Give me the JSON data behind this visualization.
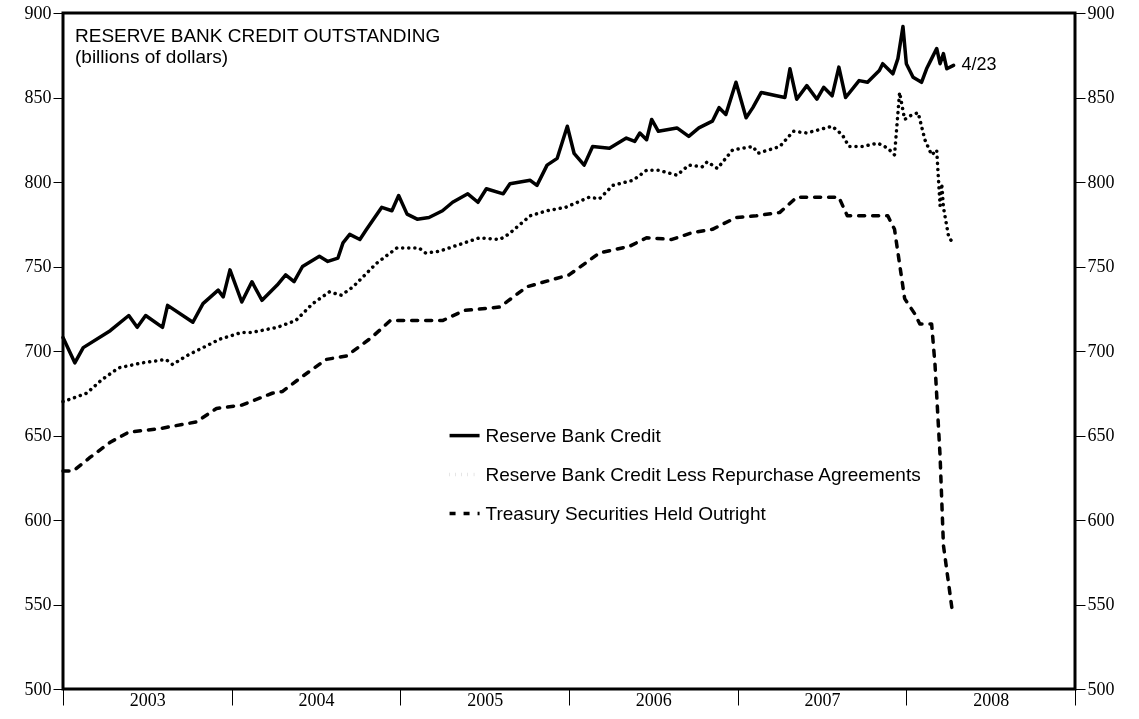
{
  "chart_data": {
    "type": "line",
    "title": "RESERVE BANK CREDIT OUTSTANDING",
    "subtitle": "(billions of dollars)",
    "xlim": [
      2003,
      2009
    ],
    "xticks": [
      {
        "value": 2003,
        "label": null
      },
      {
        "value": 2003.5,
        "label": "2003"
      },
      {
        "value": 2004,
        "label": null
      },
      {
        "value": 2004.5,
        "label": "2004"
      },
      {
        "value": 2005,
        "label": null
      },
      {
        "value": 2005.5,
        "label": "2005"
      },
      {
        "value": 2006,
        "label": null
      },
      {
        "value": 2006.5,
        "label": "2006"
      },
      {
        "value": 2007,
        "label": null
      },
      {
        "value": 2007.5,
        "label": "2007"
      },
      {
        "value": 2008,
        "label": null
      },
      {
        "value": 2008.5,
        "label": "2008"
      },
      {
        "value": 2009,
        "label": null
      }
    ],
    "ylim": [
      500,
      900
    ],
    "yticks": [
      500,
      550,
      600,
      650,
      700,
      750,
      800,
      850,
      900
    ],
    "y2lim": [
      500,
      900
    ],
    "y2ticks": [
      500,
      550,
      600,
      650,
      700,
      750,
      800,
      850,
      900
    ],
    "grid": false,
    "legend": "bottom",
    "annotations": [
      {
        "text": "4/23",
        "x": 2008.28,
        "y": 869
      }
    ],
    "series": [
      {
        "name": "Reserve Bank Credit",
        "color": "#000000",
        "line_style": "solid",
        "x": [
          2003.0,
          2003.07,
          2003.12,
          2003.28,
          2003.39,
          2003.44,
          2003.49,
          2003.59,
          2003.62,
          2003.77,
          2003.83,
          2003.92,
          2003.95,
          2003.99,
          2004.06,
          2004.12,
          2004.18,
          2004.27,
          2004.32,
          2004.37,
          2004.42,
          2004.52,
          2004.57,
          2004.63,
          2004.66,
          2004.7,
          2004.76,
          2004.8,
          2004.89,
          2004.95,
          2004.99,
          2005.04,
          2005.1,
          2005.17,
          2005.25,
          2005.31,
          2005.4,
          2005.46,
          2005.51,
          2005.61,
          2005.65,
          2005.77,
          2005.81,
          2005.87,
          2005.93,
          2005.99,
          2006.03,
          2006.09,
          2006.14,
          2006.24,
          2006.34,
          2006.39,
          2006.42,
          2006.46,
          2006.49,
          2006.53,
          2006.64,
          2006.71,
          2006.77,
          2006.85,
          2006.89,
          2006.93,
          2006.99,
          2007.05,
          2007.09,
          2007.14,
          2007.23,
          2007.28,
          2007.31,
          2007.35,
          2007.41,
          2007.47,
          2007.51,
          2007.56,
          2007.6,
          2007.64,
          2007.72,
          2007.77,
          2007.84,
          2007.86,
          2007.92,
          2007.95,
          2007.98,
          2008.0,
          2008.04,
          2008.09,
          2008.12,
          2008.15,
          2008.18,
          2008.2,
          2008.22,
          2008.24,
          2008.28
        ],
        "values": [
          708,
          693,
          702,
          712,
          721,
          714,
          721,
          714,
          727,
          717,
          728,
          736,
          732,
          748,
          729,
          741,
          730,
          739,
          745,
          741,
          750,
          756,
          753,
          755,
          764,
          769,
          766,
          772,
          785,
          783,
          792,
          781,
          778,
          779,
          783,
          788,
          793,
          788,
          796,
          793,
          799,
          801,
          798,
          810,
          814,
          833,
          817,
          810,
          821,
          820,
          826,
          824,
          829,
          825,
          837,
          830,
          832,
          827,
          832,
          836,
          844,
          840,
          859,
          838,
          844,
          853,
          851,
          850,
          867,
          849,
          857,
          849,
          856,
          851,
          868,
          850,
          860,
          859,
          866,
          870,
          864,
          873,
          892,
          870,
          862,
          859,
          867,
          873,
          879,
          870,
          876,
          867,
          869
        ]
      },
      {
        "name": "Reserve Bank Credit Less Repurchase Agreements",
        "color": "#000000",
        "line_style": "dotted",
        "x": [
          2003.0,
          2003.14,
          2003.23,
          2003.33,
          2003.47,
          2003.61,
          2003.65,
          2003.73,
          2003.83,
          2003.93,
          2004.06,
          2004.12,
          2004.27,
          2004.38,
          2004.48,
          2004.58,
          2004.65,
          2004.72,
          2004.86,
          2004.98,
          2005.11,
          2005.15,
          2005.23,
          2005.35,
          2005.47,
          2005.59,
          2005.64,
          2005.77,
          2005.87,
          2005.98,
          2006.12,
          2006.18,
          2006.26,
          2006.38,
          2006.46,
          2006.53,
          2006.64,
          2006.71,
          2006.79,
          2006.82,
          2006.88,
          2006.97,
          2007.09,
          2007.12,
          2007.25,
          2007.33,
          2007.41,
          2007.56,
          2007.62,
          2007.66,
          2007.74,
          2007.83,
          2007.89,
          2007.93,
          2007.96,
          2007.99,
          2008.02,
          2008.07,
          2008.11,
          2008.15,
          2008.18,
          2008.2,
          2008.21,
          2008.22,
          2008.25,
          2008.28
        ],
        "values": [
          670,
          675,
          683,
          690,
          693,
          695,
          692,
          697,
          702,
          707,
          711,
          711,
          714,
          718,
          728,
          735,
          733,
          738,
          752,
          761,
          761,
          758,
          759,
          763,
          767,
          766,
          769,
          780,
          783,
          785,
          791,
          790,
          798,
          801,
          807,
          807,
          804,
          810,
          809,
          812,
          808,
          819,
          821,
          817,
          821,
          830,
          829,
          833,
          828,
          821,
          821,
          823,
          820,
          816,
          853,
          837,
          839,
          841,
          825,
          816,
          819,
          786,
          799,
          785,
          768,
          763
        ]
      },
      {
        "name": "Treasury Securities Held Outright",
        "color": "#000000",
        "line_style": "dashed",
        "x": [
          2003.0,
          2003.06,
          2003.16,
          2003.28,
          2003.39,
          2003.57,
          2003.79,
          2003.91,
          2004.06,
          2004.24,
          2004.3,
          2004.42,
          2004.56,
          2004.68,
          2004.83,
          2004.94,
          2005.25,
          2005.38,
          2005.59,
          2005.75,
          2006.0,
          2006.18,
          2006.36,
          2006.46,
          2006.61,
          2006.73,
          2006.85,
          2006.99,
          2007.11,
          2007.25,
          2007.35,
          2007.6,
          2007.65,
          2007.84,
          2007.89,
          2007.93,
          2007.99,
          2008.05,
          2008.08,
          2008.15,
          2008.17,
          2008.2,
          2008.22,
          2008.27
        ],
        "values": [
          629,
          629,
          637,
          646,
          652,
          654,
          658,
          666,
          668,
          675,
          676,
          685,
          695,
          697,
          708,
          718,
          718,
          724,
          726,
          738,
          745,
          758,
          762,
          767,
          766,
          770,
          772,
          779,
          780,
          782,
          791,
          791,
          780,
          780,
          780,
          772,
          731,
          722,
          716,
          716,
          692,
          638,
          585,
          548
        ]
      }
    ]
  }
}
